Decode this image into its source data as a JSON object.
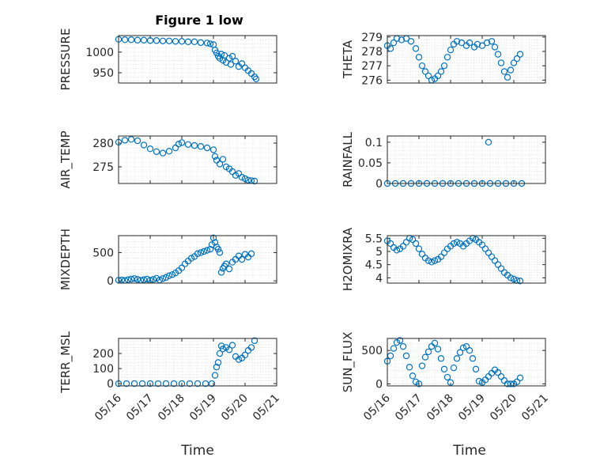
{
  "figure": {
    "title": "Figure 1 low",
    "xlabel": "Time",
    "x_tick_labels": [
      "05/16",
      "05/17",
      "05/18",
      "05/19",
      "05/20",
      "05/21"
    ],
    "marker_color": "#0072bd"
  },
  "chart_data": [
    {
      "id": "pressure",
      "type": "scatter",
      "ylabel": "PRESSURE",
      "ylim": [
        925,
        1040
      ],
      "yticks": [
        950,
        1000
      ],
      "ytick_labels": [
        "950",
        "1000"
      ],
      "grid": true,
      "points": [
        [
          0.0,
          1031
        ],
        [
          0.2,
          1030
        ],
        [
          0.4,
          1030
        ],
        [
          0.6,
          1029
        ],
        [
          0.8,
          1029
        ],
        [
          1.0,
          1028
        ],
        [
          1.2,
          1028
        ],
        [
          1.4,
          1027
        ],
        [
          1.6,
          1027
        ],
        [
          1.8,
          1026
        ],
        [
          2.0,
          1026
        ],
        [
          2.2,
          1025
        ],
        [
          2.4,
          1025
        ],
        [
          2.6,
          1023
        ],
        [
          2.8,
          1022
        ],
        [
          2.9,
          1020
        ],
        [
          3.0,
          1018
        ],
        [
          3.05,
          1005
        ],
        [
          3.1,
          998
        ],
        [
          3.15,
          990
        ],
        [
          3.2,
          985
        ],
        [
          3.25,
          995
        ],
        [
          3.3,
          980
        ],
        [
          3.35,
          992
        ],
        [
          3.4,
          975
        ],
        [
          3.5,
          985
        ],
        [
          3.55,
          970
        ],
        [
          3.6,
          990
        ],
        [
          3.7,
          978
        ],
        [
          3.8,
          965
        ],
        [
          3.9,
          972
        ],
        [
          4.0,
          962
        ],
        [
          4.1,
          955
        ],
        [
          4.2,
          948
        ],
        [
          4.3,
          940
        ],
        [
          4.35,
          935
        ]
      ]
    },
    {
      "id": "theta",
      "type": "scatter",
      "ylabel": "THETA",
      "ylim": [
        275.8,
        279.1
      ],
      "yticks": [
        276,
        277,
        278,
        279
      ],
      "ytick_labels": [
        "276",
        "277",
        "278",
        "279"
      ],
      "grid": true,
      "points": [
        [
          0.0,
          278.4
        ],
        [
          0.1,
          278.2
        ],
        [
          0.2,
          278.6
        ],
        [
          0.3,
          278.9
        ],
        [
          0.45,
          278.8
        ],
        [
          0.6,
          278.9
        ],
        [
          0.75,
          278.7
        ],
        [
          0.9,
          278.2
        ],
        [
          1.0,
          277.6
        ],
        [
          1.1,
          277.0
        ],
        [
          1.2,
          276.6
        ],
        [
          1.3,
          276.3
        ],
        [
          1.4,
          276.0
        ],
        [
          1.5,
          276.1
        ],
        [
          1.6,
          276.3
        ],
        [
          1.7,
          276.6
        ],
        [
          1.8,
          277.0
        ],
        [
          1.9,
          277.6
        ],
        [
          2.0,
          278.1
        ],
        [
          2.1,
          278.5
        ],
        [
          2.2,
          278.7
        ],
        [
          2.35,
          278.6
        ],
        [
          2.5,
          278.4
        ],
        [
          2.6,
          278.6
        ],
        [
          2.75,
          278.3
        ],
        [
          2.85,
          278.5
        ],
        [
          3.0,
          278.4
        ],
        [
          3.15,
          278.6
        ],
        [
          3.3,
          278.7
        ],
        [
          3.4,
          278.3
        ],
        [
          3.5,
          277.8
        ],
        [
          3.6,
          277.2
        ],
        [
          3.7,
          276.6
        ],
        [
          3.8,
          276.2
        ],
        [
          3.9,
          276.7
        ],
        [
          4.0,
          277.2
        ],
        [
          4.1,
          277.5
        ],
        [
          4.2,
          277.8
        ]
      ]
    },
    {
      "id": "air_temp",
      "type": "scatter",
      "ylabel": "AIR_TEMP",
      "ylim": [
        271.5,
        281.5
      ],
      "yticks": [
        275,
        280
      ],
      "ytick_labels": [
        "275",
        "280"
      ],
      "grid": true,
      "points": [
        [
          0.0,
          280.2
        ],
        [
          0.2,
          280.6
        ],
        [
          0.4,
          280.8
        ],
        [
          0.6,
          280.5
        ],
        [
          0.8,
          279.6
        ],
        [
          1.0,
          278.8
        ],
        [
          1.2,
          278.2
        ],
        [
          1.4,
          277.9
        ],
        [
          1.6,
          278.3
        ],
        [
          1.8,
          279.0
        ],
        [
          1.9,
          279.8
        ],
        [
          2.0,
          280.1
        ],
        [
          2.2,
          279.7
        ],
        [
          2.4,
          279.5
        ],
        [
          2.6,
          279.3
        ],
        [
          2.8,
          279.0
        ],
        [
          3.0,
          278.6
        ],
        [
          3.05,
          277.2
        ],
        [
          3.1,
          276.4
        ],
        [
          3.2,
          275.6
        ],
        [
          3.3,
          276.6
        ],
        [
          3.4,
          275.0
        ],
        [
          3.5,
          274.6
        ],
        [
          3.6,
          274.0
        ],
        [
          3.7,
          273.2
        ],
        [
          3.8,
          273.6
        ],
        [
          3.9,
          272.8
        ],
        [
          4.0,
          272.5
        ],
        [
          4.1,
          272.2
        ],
        [
          4.2,
          272.1
        ],
        [
          4.3,
          272.0
        ]
      ]
    },
    {
      "id": "rainfall",
      "type": "scatter",
      "ylabel": "RAINFALL",
      "ylim": [
        0,
        0.115
      ],
      "yticks": [
        0,
        0.05,
        0.1
      ],
      "ytick_labels": [
        "0",
        "0.05",
        "0.1"
      ],
      "grid": true,
      "points": [
        [
          0.0,
          0
        ],
        [
          0.25,
          0
        ],
        [
          0.5,
          0
        ],
        [
          0.75,
          0
        ],
        [
          1.0,
          0
        ],
        [
          1.25,
          0
        ],
        [
          1.5,
          0
        ],
        [
          1.75,
          0
        ],
        [
          2.0,
          0
        ],
        [
          2.25,
          0
        ],
        [
          2.5,
          0
        ],
        [
          2.75,
          0
        ],
        [
          3.0,
          0
        ],
        [
          3.25,
          0
        ],
        [
          3.5,
          0
        ],
        [
          3.75,
          0
        ],
        [
          4.0,
          0
        ],
        [
          4.25,
          0
        ],
        [
          3.2,
          0.1
        ]
      ]
    },
    {
      "id": "mixdepth",
      "type": "scatter",
      "ylabel": "MIXDEPTH",
      "ylim": [
        -40,
        800
      ],
      "yticks": [
        0,
        500
      ],
      "ytick_labels": [
        "0",
        "500"
      ],
      "grid": true,
      "points": [
        [
          0.0,
          10
        ],
        [
          0.1,
          15
        ],
        [
          0.2,
          8
        ],
        [
          0.3,
          20
        ],
        [
          0.4,
          30
        ],
        [
          0.5,
          40
        ],
        [
          0.6,
          25
        ],
        [
          0.7,
          10
        ],
        [
          0.8,
          20
        ],
        [
          0.9,
          30
        ],
        [
          1.0,
          10
        ],
        [
          1.1,
          25
        ],
        [
          1.2,
          45
        ],
        [
          1.3,
          15
        ],
        [
          1.4,
          40
        ],
        [
          1.5,
          60
        ],
        [
          1.6,
          90
        ],
        [
          1.7,
          110
        ],
        [
          1.8,
          140
        ],
        [
          1.9,
          180
        ],
        [
          2.0,
          230
        ],
        [
          2.1,
          300
        ],
        [
          2.2,
          350
        ],
        [
          2.3,
          400
        ],
        [
          2.4,
          430
        ],
        [
          2.5,
          480
        ],
        [
          2.6,
          500
        ],
        [
          2.7,
          520
        ],
        [
          2.8,
          540
        ],
        [
          2.9,
          560
        ],
        [
          2.95,
          640
        ],
        [
          3.0,
          760
        ],
        [
          3.05,
          680
        ],
        [
          3.1,
          600
        ],
        [
          3.15,
          560
        ],
        [
          3.2,
          500
        ],
        [
          3.25,
          150
        ],
        [
          3.3,
          220
        ],
        [
          3.35,
          260
        ],
        [
          3.4,
          300
        ],
        [
          3.5,
          210
        ],
        [
          3.6,
          330
        ],
        [
          3.7,
          380
        ],
        [
          3.8,
          440
        ],
        [
          3.9,
          380
        ],
        [
          4.0,
          470
        ],
        [
          4.1,
          420
        ],
        [
          4.2,
          480
        ]
      ]
    },
    {
      "id": "h2omixra",
      "type": "scatter",
      "ylabel": "H2OMIXRA",
      "ylim": [
        3.8,
        5.6
      ],
      "yticks": [
        4,
        4.5,
        5,
        5.5
      ],
      "ytick_labels": [
        "4",
        "4.5",
        "5",
        "5.5"
      ],
      "grid": true,
      "points": [
        [
          0.0,
          5.4
        ],
        [
          0.1,
          5.3
        ],
        [
          0.2,
          5.15
        ],
        [
          0.3,
          5.05
        ],
        [
          0.4,
          5.1
        ],
        [
          0.5,
          5.2
        ],
        [
          0.6,
          5.35
        ],
        [
          0.7,
          5.5
        ],
        [
          0.8,
          5.45
        ],
        [
          0.9,
          5.3
        ],
        [
          1.0,
          5.1
        ],
        [
          1.1,
          4.9
        ],
        [
          1.2,
          4.75
        ],
        [
          1.3,
          4.65
        ],
        [
          1.4,
          4.6
        ],
        [
          1.5,
          4.65
        ],
        [
          1.6,
          4.7
        ],
        [
          1.7,
          4.8
        ],
        [
          1.8,
          4.95
        ],
        [
          1.9,
          5.1
        ],
        [
          2.0,
          5.2
        ],
        [
          2.1,
          5.3
        ],
        [
          2.2,
          5.35
        ],
        [
          2.3,
          5.3
        ],
        [
          2.4,
          5.2
        ],
        [
          2.5,
          5.3
        ],
        [
          2.6,
          5.4
        ],
        [
          2.7,
          5.5
        ],
        [
          2.8,
          5.45
        ],
        [
          2.9,
          5.35
        ],
        [
          3.0,
          5.25
        ],
        [
          3.1,
          5.1
        ],
        [
          3.2,
          4.95
        ],
        [
          3.3,
          4.8
        ],
        [
          3.4,
          4.65
        ],
        [
          3.5,
          4.5
        ],
        [
          3.6,
          4.35
        ],
        [
          3.7,
          4.2
        ],
        [
          3.8,
          4.1
        ],
        [
          3.9,
          4.0
        ],
        [
          4.0,
          3.95
        ],
        [
          4.1,
          3.9
        ],
        [
          4.2,
          3.88
        ]
      ]
    },
    {
      "id": "terr_msl",
      "type": "scatter",
      "ylabel": "TERR_MSL",
      "ylim": [
        -15,
        300
      ],
      "yticks": [
        0,
        100,
        200
      ],
      "ytick_labels": [
        "0",
        "100",
        "200"
      ],
      "grid": true,
      "points": [
        [
          0.0,
          0
        ],
        [
          0.25,
          0
        ],
        [
          0.5,
          0
        ],
        [
          0.75,
          0
        ],
        [
          1.0,
          0
        ],
        [
          1.25,
          0
        ],
        [
          1.5,
          0
        ],
        [
          1.75,
          0
        ],
        [
          2.0,
          0
        ],
        [
          2.25,
          0
        ],
        [
          2.5,
          0
        ],
        [
          2.75,
          0
        ],
        [
          2.95,
          0
        ],
        [
          3.05,
          55
        ],
        [
          3.1,
          110
        ],
        [
          3.15,
          140
        ],
        [
          3.2,
          200
        ],
        [
          3.25,
          250
        ],
        [
          3.3,
          230
        ],
        [
          3.4,
          240
        ],
        [
          3.5,
          225
        ],
        [
          3.6,
          255
        ],
        [
          3.7,
          180
        ],
        [
          3.8,
          160
        ],
        [
          3.9,
          170
        ],
        [
          4.0,
          190
        ],
        [
          4.1,
          220
        ],
        [
          4.2,
          240
        ],
        [
          4.3,
          285
        ]
      ]
    },
    {
      "id": "sun_flux",
      "type": "scatter",
      "ylabel": "SUN_FLUX",
      "ylim": [
        -30,
        680
      ],
      "yticks": [
        0,
        500
      ],
      "ytick_labels": [
        "0",
        "500"
      ],
      "grid": true,
      "points": [
        [
          0.0,
          340
        ],
        [
          0.1,
          420
        ],
        [
          0.2,
          530
        ],
        [
          0.3,
          620
        ],
        [
          0.4,
          650
        ],
        [
          0.5,
          560
        ],
        [
          0.6,
          420
        ],
        [
          0.7,
          250
        ],
        [
          0.8,
          120
        ],
        [
          0.9,
          30
        ],
        [
          1.0,
          0
        ],
        [
          1.1,
          270
        ],
        [
          1.2,
          400
        ],
        [
          1.3,
          480
        ],
        [
          1.4,
          560
        ],
        [
          1.5,
          610
        ],
        [
          1.6,
          520
        ],
        [
          1.7,
          380
        ],
        [
          1.8,
          220
        ],
        [
          1.9,
          100
        ],
        [
          2.0,
          20
        ],
        [
          2.1,
          240
        ],
        [
          2.2,
          380
        ],
        [
          2.3,
          470
        ],
        [
          2.4,
          540
        ],
        [
          2.5,
          560
        ],
        [
          2.6,
          500
        ],
        [
          2.7,
          380
        ],
        [
          2.8,
          220
        ],
        [
          2.9,
          40
        ],
        [
          3.0,
          20
        ],
        [
          3.1,
          60
        ],
        [
          3.2,
          110
        ],
        [
          3.3,
          160
        ],
        [
          3.4,
          210
        ],
        [
          3.5,
          170
        ],
        [
          3.6,
          110
        ],
        [
          3.7,
          50
        ],
        [
          3.8,
          0
        ],
        [
          3.9,
          0
        ],
        [
          4.0,
          0
        ],
        [
          4.1,
          30
        ],
        [
          4.2,
          90
        ]
      ]
    }
  ]
}
